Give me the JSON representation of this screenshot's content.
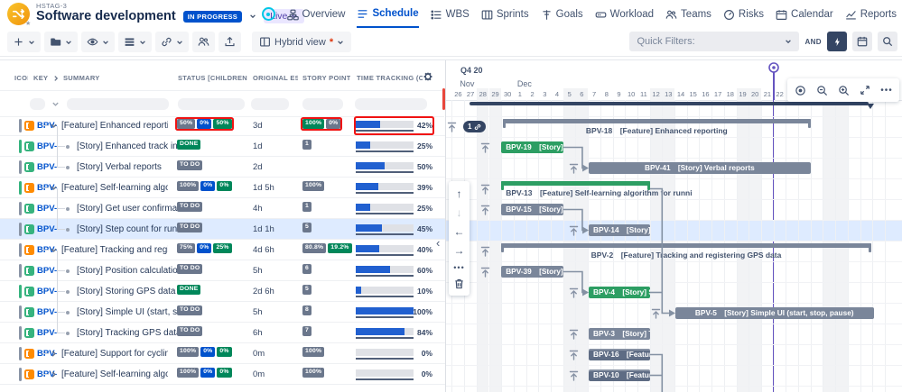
{
  "header": {
    "project_key": "HSTAG-3",
    "title": "Software development",
    "status_badge": "IN PROGRESS",
    "live_badge": "Live",
    "nav": [
      {
        "label": "Overview",
        "icon": "sitemap-icon",
        "active": false
      },
      {
        "label": "Schedule",
        "icon": "schedule-lines-icon",
        "active": true
      },
      {
        "label": "WBS",
        "icon": "list-icon",
        "active": false
      },
      {
        "label": "Sprints",
        "icon": "columns-icon",
        "active": false
      },
      {
        "label": "Goals",
        "icon": "goal-icon",
        "active": false
      },
      {
        "label": "Workload",
        "icon": "workload-icon",
        "active": false
      },
      {
        "label": "Teams",
        "icon": "people-icon",
        "active": false
      },
      {
        "label": "Risks",
        "icon": "gauge-icon",
        "active": false
      },
      {
        "label": "Calendar",
        "icon": "calendar-icon",
        "active": false
      },
      {
        "label": "Reports",
        "icon": "chart-icon",
        "active": false
      }
    ]
  },
  "toolbar": {
    "hybrid_view_label": "Hybrid view",
    "quick_filters_placeholder": "Quick Filters:",
    "operator": "AND"
  },
  "table": {
    "columns": {
      "icon": "ICON",
      "key": "KEY",
      "summary": "SUMMARY",
      "status": "STATUS [CHILDREN STA",
      "estimate": "ORIGINAL ESTI",
      "points": "STORY POINTS [",
      "tracking": "TIME TRACKING (ORIGIN"
    },
    "rows": [
      {
        "key": "BPV-",
        "type": "feature",
        "expanded": true,
        "strip": "gray",
        "summary": "[Feature] Enhanced reporting",
        "status": [
          [
            "50%",
            "gray"
          ],
          [
            "0%",
            "blue"
          ],
          [
            "50%",
            "green"
          ]
        ],
        "status_hl": true,
        "estimate": "3d",
        "points": [
          [
            "100%",
            "green"
          ],
          [
            "0%",
            "gray"
          ]
        ],
        "points_hl": true,
        "progress": 42,
        "progress_hl": true,
        "selected": false,
        "last_child": false
      },
      {
        "key": "BPV-",
        "type": "story",
        "strip": "green",
        "summary": "[Story] Enhanced track infor",
        "status": [
          [
            "DONE",
            "green"
          ]
        ],
        "estimate": "1d",
        "points": [
          [
            "1",
            "gray"
          ]
        ],
        "progress": 25,
        "selected": false,
        "last_child": false
      },
      {
        "key": "BPV-",
        "type": "story",
        "strip": "gray",
        "summary": "[Story] Verbal reports",
        "status": [
          [
            "TO DO",
            "gray"
          ]
        ],
        "estimate": "2d",
        "points": [],
        "progress": 50,
        "selected": false,
        "last_child": true
      },
      {
        "key": "BPV-",
        "type": "feature",
        "expanded": true,
        "strip": "green",
        "summary": "[Feature] Self-learning algorith",
        "status": [
          [
            "100%",
            "gray"
          ],
          [
            "0%",
            "blue"
          ],
          [
            "0%",
            "green"
          ]
        ],
        "estimate": "1d 5h",
        "points": [
          [
            "100%",
            "gray"
          ]
        ],
        "progress": 39,
        "selected": false,
        "last_child": false
      },
      {
        "key": "BPV-",
        "type": "story",
        "strip": "gray",
        "summary": "[Story] Get user confirmatio",
        "status": [
          [
            "TO DO",
            "gray"
          ]
        ],
        "estimate": "4h",
        "points": [
          [
            "1",
            "gray"
          ]
        ],
        "progress": 25,
        "selected": false,
        "last_child": false
      },
      {
        "key": "BPV-",
        "type": "story",
        "strip": "gray",
        "summary": "[Story] Step count for runnin",
        "status": [
          [
            "TO DO",
            "gray"
          ]
        ],
        "estimate": "1d 1h",
        "points": [
          [
            "5",
            "gray"
          ]
        ],
        "progress": 45,
        "selected": true,
        "last_child": true
      },
      {
        "key": "BPV-",
        "type": "feature",
        "expanded": true,
        "strip": "gray",
        "summary": "[Feature] Tracking and register",
        "status": [
          [
            "75%",
            "gray"
          ],
          [
            "0%",
            "blue"
          ],
          [
            "25%",
            "green"
          ]
        ],
        "estimate": "4d 6h",
        "points": [
          [
            "80.8%",
            "gray"
          ],
          [
            "19.2%",
            "green"
          ]
        ],
        "progress": 40,
        "selected": false,
        "last_child": false
      },
      {
        "key": "BPV-",
        "type": "story",
        "strip": "gray",
        "summary": "[Story] Position calculation",
        "status": [
          [
            "TO DO",
            "gray"
          ]
        ],
        "estimate": "5h",
        "points": [
          [
            "6",
            "gray"
          ]
        ],
        "progress": 60,
        "selected": false,
        "last_child": false
      },
      {
        "key": "BPV-",
        "type": "story",
        "strip": "green",
        "summary": "[Story] Storing GPS data loc",
        "status": [
          [
            "DONE",
            "green"
          ]
        ],
        "estimate": "2d 6h",
        "points": [
          [
            "5",
            "gray"
          ]
        ],
        "progress": 10,
        "selected": false,
        "last_child": false
      },
      {
        "key": "BPV-",
        "type": "story",
        "strip": "gray",
        "summary": "[Story] Simple UI (start, stop",
        "status": [
          [
            "TO DO",
            "gray"
          ]
        ],
        "estimate": "5h",
        "points": [
          [
            "8",
            "gray"
          ]
        ],
        "progress": 100,
        "selected": false,
        "last_child": false
      },
      {
        "key": "BPV-",
        "type": "story",
        "strip": "gray",
        "summary": "[Story] Tracking GPS data",
        "status": [
          [
            "TO DO",
            "gray"
          ]
        ],
        "estimate": "6h",
        "points": [
          [
            "7",
            "gray"
          ]
        ],
        "progress": 84,
        "selected": false,
        "last_child": true
      },
      {
        "key": "BPV-",
        "type": "feature",
        "expanded": false,
        "strip": "gray",
        "summary": "[Feature] Support for cycling, v",
        "status": [
          [
            "100%",
            "gray"
          ],
          [
            "0%",
            "blue"
          ],
          [
            "0%",
            "green"
          ]
        ],
        "estimate": "0m",
        "points": [
          [
            "100%",
            "gray"
          ]
        ],
        "progress": 0,
        "selected": false,
        "last_child": false
      },
      {
        "key": "BPV-",
        "type": "feature",
        "expanded": false,
        "strip": "gray",
        "summary": "[Feature] Self-learning algorith",
        "status": [
          [
            "100%",
            "gray"
          ],
          [
            "0%",
            "blue"
          ],
          [
            "0%",
            "green"
          ]
        ],
        "estimate": "0m",
        "points": [
          [
            "100%",
            "gray"
          ]
        ],
        "progress": 0,
        "selected": false,
        "last_child": false
      }
    ]
  },
  "gantt": {
    "quarter": "Q4 20",
    "months": [
      {
        "label": "Nov",
        "day_index": 0
      },
      {
        "label": "Dec",
        "day_index": 5
      }
    ],
    "days": [
      26,
      27,
      28,
      29,
      30,
      1,
      2,
      3,
      4,
      5,
      6,
      7,
      8,
      9,
      10,
      11,
      12,
      13,
      14,
      15,
      16,
      17,
      18,
      19,
      20,
      21,
      22,
      23,
      24,
      25,
      26,
      27,
      28,
      29,
      30,
      31
    ],
    "weekend_indices": [
      2,
      3,
      9,
      10,
      16,
      17,
      23,
      24,
      30,
      31
    ],
    "today_day_index": 26,
    "project_bar": {
      "start": 1.4,
      "end": 33.7
    },
    "rows": [
      {
        "row": 1,
        "key": "BPV-18",
        "text": "[Feature] Enhanced reporting",
        "kind": "bracket",
        "color": "gray",
        "start": 4.13,
        "end": 29.0,
        "align": "center",
        "marker": 0.0,
        "link_badge": "1"
      },
      {
        "row": 2,
        "key": "BPV-19",
        "text": "[Story] Enh",
        "kind": "bar",
        "color": "green",
        "start": 4,
        "end": 9.02,
        "align": "left",
        "marker": 2.7
      },
      {
        "row": 3,
        "key": "BPV-41",
        "text": "[Story] Verbal reports",
        "kind": "bar",
        "color": "gray",
        "start": 11.07,
        "end": 29.0,
        "align": "center",
        "marker": 9.8
      },
      {
        "row": 4,
        "key": "BPV-13",
        "text": "[Feature] Self-learning algorithm for runni",
        "kind": "bracket",
        "color": "green",
        "start": 4,
        "end": 16.03,
        "align": "left",
        "marker": 2.7
      },
      {
        "row": 5,
        "key": "BPV-15",
        "text": "[Story] Get",
        "kind": "bar",
        "color": "gray",
        "start": 4,
        "end": 9.02,
        "align": "left",
        "marker": 2.7
      },
      {
        "row": 6,
        "key": "BPV-14",
        "text": "[Story] Ste",
        "kind": "bar",
        "color": "gray",
        "start": 11.07,
        "end": 16.03,
        "align": "left",
        "marker": 9.8
      },
      {
        "row": 7,
        "key": "BPV-2",
        "text": "[Feature] Tracking and registering GPS data",
        "kind": "bracket",
        "color": "gray",
        "start": 4,
        "end": 33.9,
        "align": "center",
        "marker": 2.7
      },
      {
        "row": 8,
        "key": "BPV-39",
        "text": "[Story] Pos",
        "kind": "bar",
        "color": "gray",
        "start": 4,
        "end": 9.02,
        "align": "left",
        "marker": 2.7
      },
      {
        "row": 9,
        "key": "BPV-4",
        "text": "[Story] Stori",
        "kind": "bar",
        "color": "green",
        "start": 11.07,
        "end": 16.03,
        "align": "left",
        "marker": 9.8
      },
      {
        "row": 10,
        "key": "BPV-5",
        "text": "[Story] Simple UI (start, stop, pause)",
        "kind": "bar",
        "color": "gray",
        "start": 18.07,
        "end": 34.1,
        "align": "center",
        "marker": 16.5
      },
      {
        "row": 11,
        "key": "BPV-3",
        "text": "[Story] Track",
        "kind": "bar",
        "color": "gray",
        "start": 11.07,
        "end": 16.03,
        "align": "left",
        "marker": 9.8
      },
      {
        "row": 12,
        "key": "BPV-16",
        "text": "[Feature] S",
        "kind": "bar",
        "color": "dark",
        "start": 11.07,
        "end": 16.03,
        "align": "left",
        "marker": 9.8
      },
      {
        "row": 13,
        "key": "BPV-10",
        "text": "[Feature] S",
        "kind": "bar",
        "color": "dark",
        "start": 11.07,
        "end": 16.03,
        "align": "left",
        "marker": 9.8
      }
    ],
    "selected_row": 6,
    "links": [
      {
        "from_row": 2,
        "from_day": 9.02,
        "via_day": 10.55,
        "to_row": 3,
        "to_day": 11.07
      },
      {
        "from_row": 5,
        "from_day": 9.02,
        "via_day": 10.55,
        "to_row": 6,
        "to_day": 11.07
      },
      {
        "from_row": 8,
        "from_day": 9.02,
        "via_day": 10.55,
        "to_row": 9,
        "to_day": 11.07
      },
      {
        "from_row": 4,
        "from_day": 16.03,
        "via_day": 17.0,
        "to_row": 10,
        "to_day": 18.07
      },
      {
        "from_row": 9,
        "from_day": 16.03,
        "via_day": 17.0
      },
      {
        "from_row": 12,
        "from_day": 16.03,
        "via_day": 17.0,
        "drop": true
      },
      {
        "from_row": 13,
        "from_day": 16.03,
        "via_day": 17.0
      }
    ]
  },
  "colors": {
    "badge_gray": "#6b778c",
    "badge_blue": "#0052cc",
    "badge_green": "#00875a",
    "bar_gray": "#7a869a",
    "bar_green": "#2d9e63",
    "bar_dark": "#5e6c84",
    "strip_gray": "#8a94a6",
    "strip_green": "#36b37e",
    "feature_icon": "#ff8b00",
    "story_icon": "#36b37e",
    "accent_blue": "#0052cc",
    "today_purple": "#6554c0",
    "progress_fill": "#2160d0",
    "highlight_red": "#f01313"
  }
}
